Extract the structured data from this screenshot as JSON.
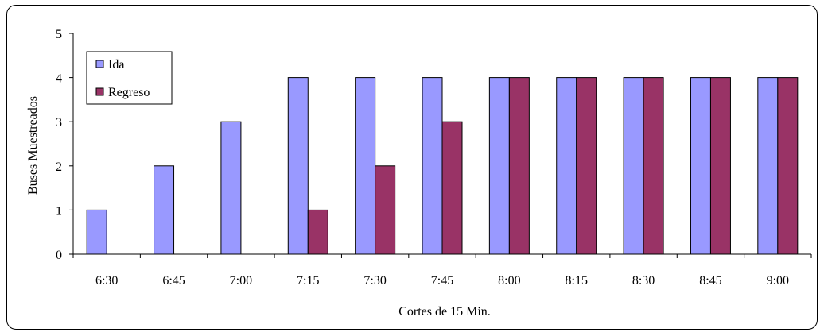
{
  "chart_data": {
    "type": "bar",
    "title": "",
    "xlabel": "Cortes de 15 Min.",
    "ylabel": "Buses Muestreados",
    "ylim": [
      0,
      5
    ],
    "yticks": [
      0,
      1,
      2,
      3,
      4,
      5
    ],
    "grid": false,
    "legend_position": "top-left",
    "categories": [
      "6:30",
      "6:45",
      "7:00",
      "7:15",
      "7:30",
      "7:45",
      "8:00",
      "8:15",
      "8:30",
      "8:45",
      "9:00"
    ],
    "series": [
      {
        "name": "Ida",
        "color": "#9999FF",
        "values": [
          1,
          2,
          3,
          4,
          4,
          4,
          4,
          4,
          4,
          4,
          4
        ]
      },
      {
        "name": "Regreso",
        "color": "#993366",
        "values": [
          0,
          0,
          0,
          1,
          2,
          3,
          4,
          4,
          4,
          4,
          4
        ]
      }
    ]
  }
}
